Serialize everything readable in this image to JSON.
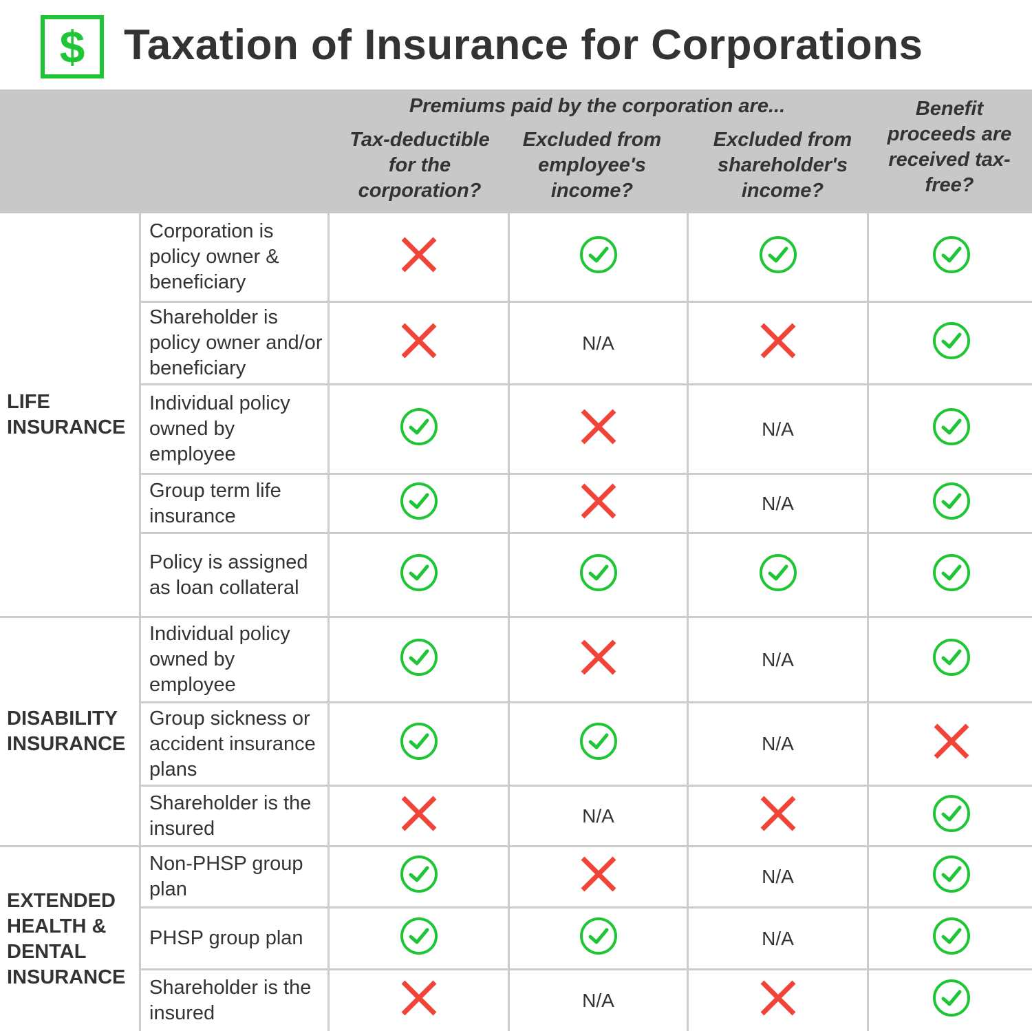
{
  "title": "Taxation of Insurance for Corporations",
  "logo_symbol": "$",
  "colors": {
    "accent_green": "#1ec534",
    "red_x": "#f04438",
    "header_bg": "#c8c8c8",
    "grid_line": "#cccccc"
  },
  "header": {
    "group_label": "Premiums paid by the corporation are...",
    "columns": [
      "Tax-deductible for the corporation?",
      "Excluded from employee's income?",
      "Excluded from shareholder's income?",
      "Benefit proceeds are received tax-free?"
    ]
  },
  "na_label": "N/A",
  "sections": [
    {
      "label": "LIFE INSURANCE",
      "rows": [
        {
          "item": "Corporation is policy owner & beneficiary",
          "values": [
            "no",
            "yes",
            "yes",
            "yes"
          ]
        },
        {
          "item": "Shareholder is policy owner and/or beneficiary",
          "values": [
            "no",
            "na",
            "no",
            "yes"
          ]
        },
        {
          "item": "Individual policy owned by employee",
          "values": [
            "yes",
            "no",
            "na",
            "yes"
          ]
        },
        {
          "item": "Group term life insurance",
          "values": [
            "yes",
            "no",
            "na",
            "yes"
          ]
        },
        {
          "item": "Policy is assigned as loan collateral",
          "values": [
            "yes",
            "yes",
            "yes",
            "yes"
          ]
        }
      ]
    },
    {
      "label": "DISABILITY INSURANCE",
      "rows": [
        {
          "item": "Individual policy owned by employee",
          "values": [
            "yes",
            "no",
            "na",
            "yes"
          ]
        },
        {
          "item": "Group sickness or accident insurance plans",
          "values": [
            "yes",
            "yes",
            "na",
            "no"
          ]
        },
        {
          "item": "Shareholder is the insured",
          "values": [
            "no",
            "na",
            "no",
            "yes"
          ]
        }
      ]
    },
    {
      "label": "EXTENDED HEALTH & DENTAL INSURANCE",
      "rows": [
        {
          "item": "Non-PHSP group plan",
          "values": [
            "yes",
            "no",
            "na",
            "yes"
          ]
        },
        {
          "item": "PHSP group plan",
          "values": [
            "yes",
            "yes",
            "na",
            "yes"
          ]
        },
        {
          "item": "Shareholder is the insured",
          "values": [
            "no",
            "na",
            "no",
            "yes"
          ]
        }
      ]
    }
  ]
}
